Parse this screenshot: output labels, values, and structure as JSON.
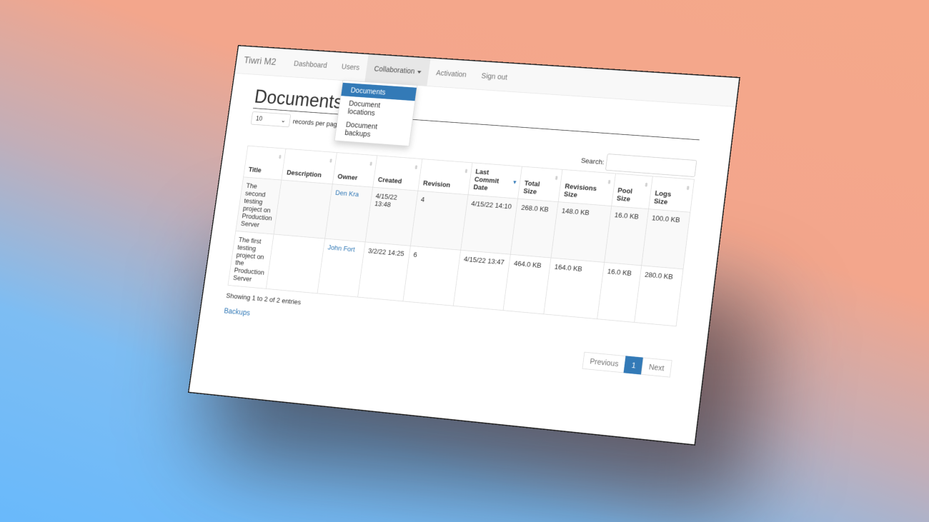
{
  "nav": {
    "brand": "Tiwri M2",
    "items": [
      "Dashboard",
      "Users",
      "Collaboration",
      "Activation",
      "Sign out"
    ],
    "dropdown": [
      "Documents",
      "Document locations",
      "Document backups"
    ]
  },
  "page": {
    "title": "Documents",
    "records_value": "10",
    "records_label": "records per page",
    "search_label": "Search:",
    "search_value": ""
  },
  "table": {
    "headers": [
      "Title",
      "Description",
      "Owner",
      "Created",
      "Revision",
      "Last Commit Date",
      "Total Size",
      "Revisions Size",
      "Pool Size",
      "Logs Size"
    ],
    "sorted_column": "Last Commit Date",
    "rows": [
      [
        "The second testing project on Production Server",
        "",
        "Den Kra",
        "4/15/22 13:48",
        "4",
        "4/15/22 14:10",
        "268.0 KB",
        "148.0 KB",
        "16.0 KB",
        "100.0 KB"
      ],
      [
        "The first testing project on the Production Server",
        "",
        "John Fort",
        "3/2/22 14:25",
        "6",
        "4/15/22 13:47",
        "464.0 KB",
        "164.0 KB",
        "16.0 KB",
        "280.0 KB"
      ]
    ]
  },
  "footer": {
    "info": "Showing 1 to 2 of 2 entries",
    "backups_link": "Backups",
    "prev": "Previous",
    "page": "1",
    "next": "Next"
  },
  "colors": {
    "accent": "#337ab7"
  }
}
